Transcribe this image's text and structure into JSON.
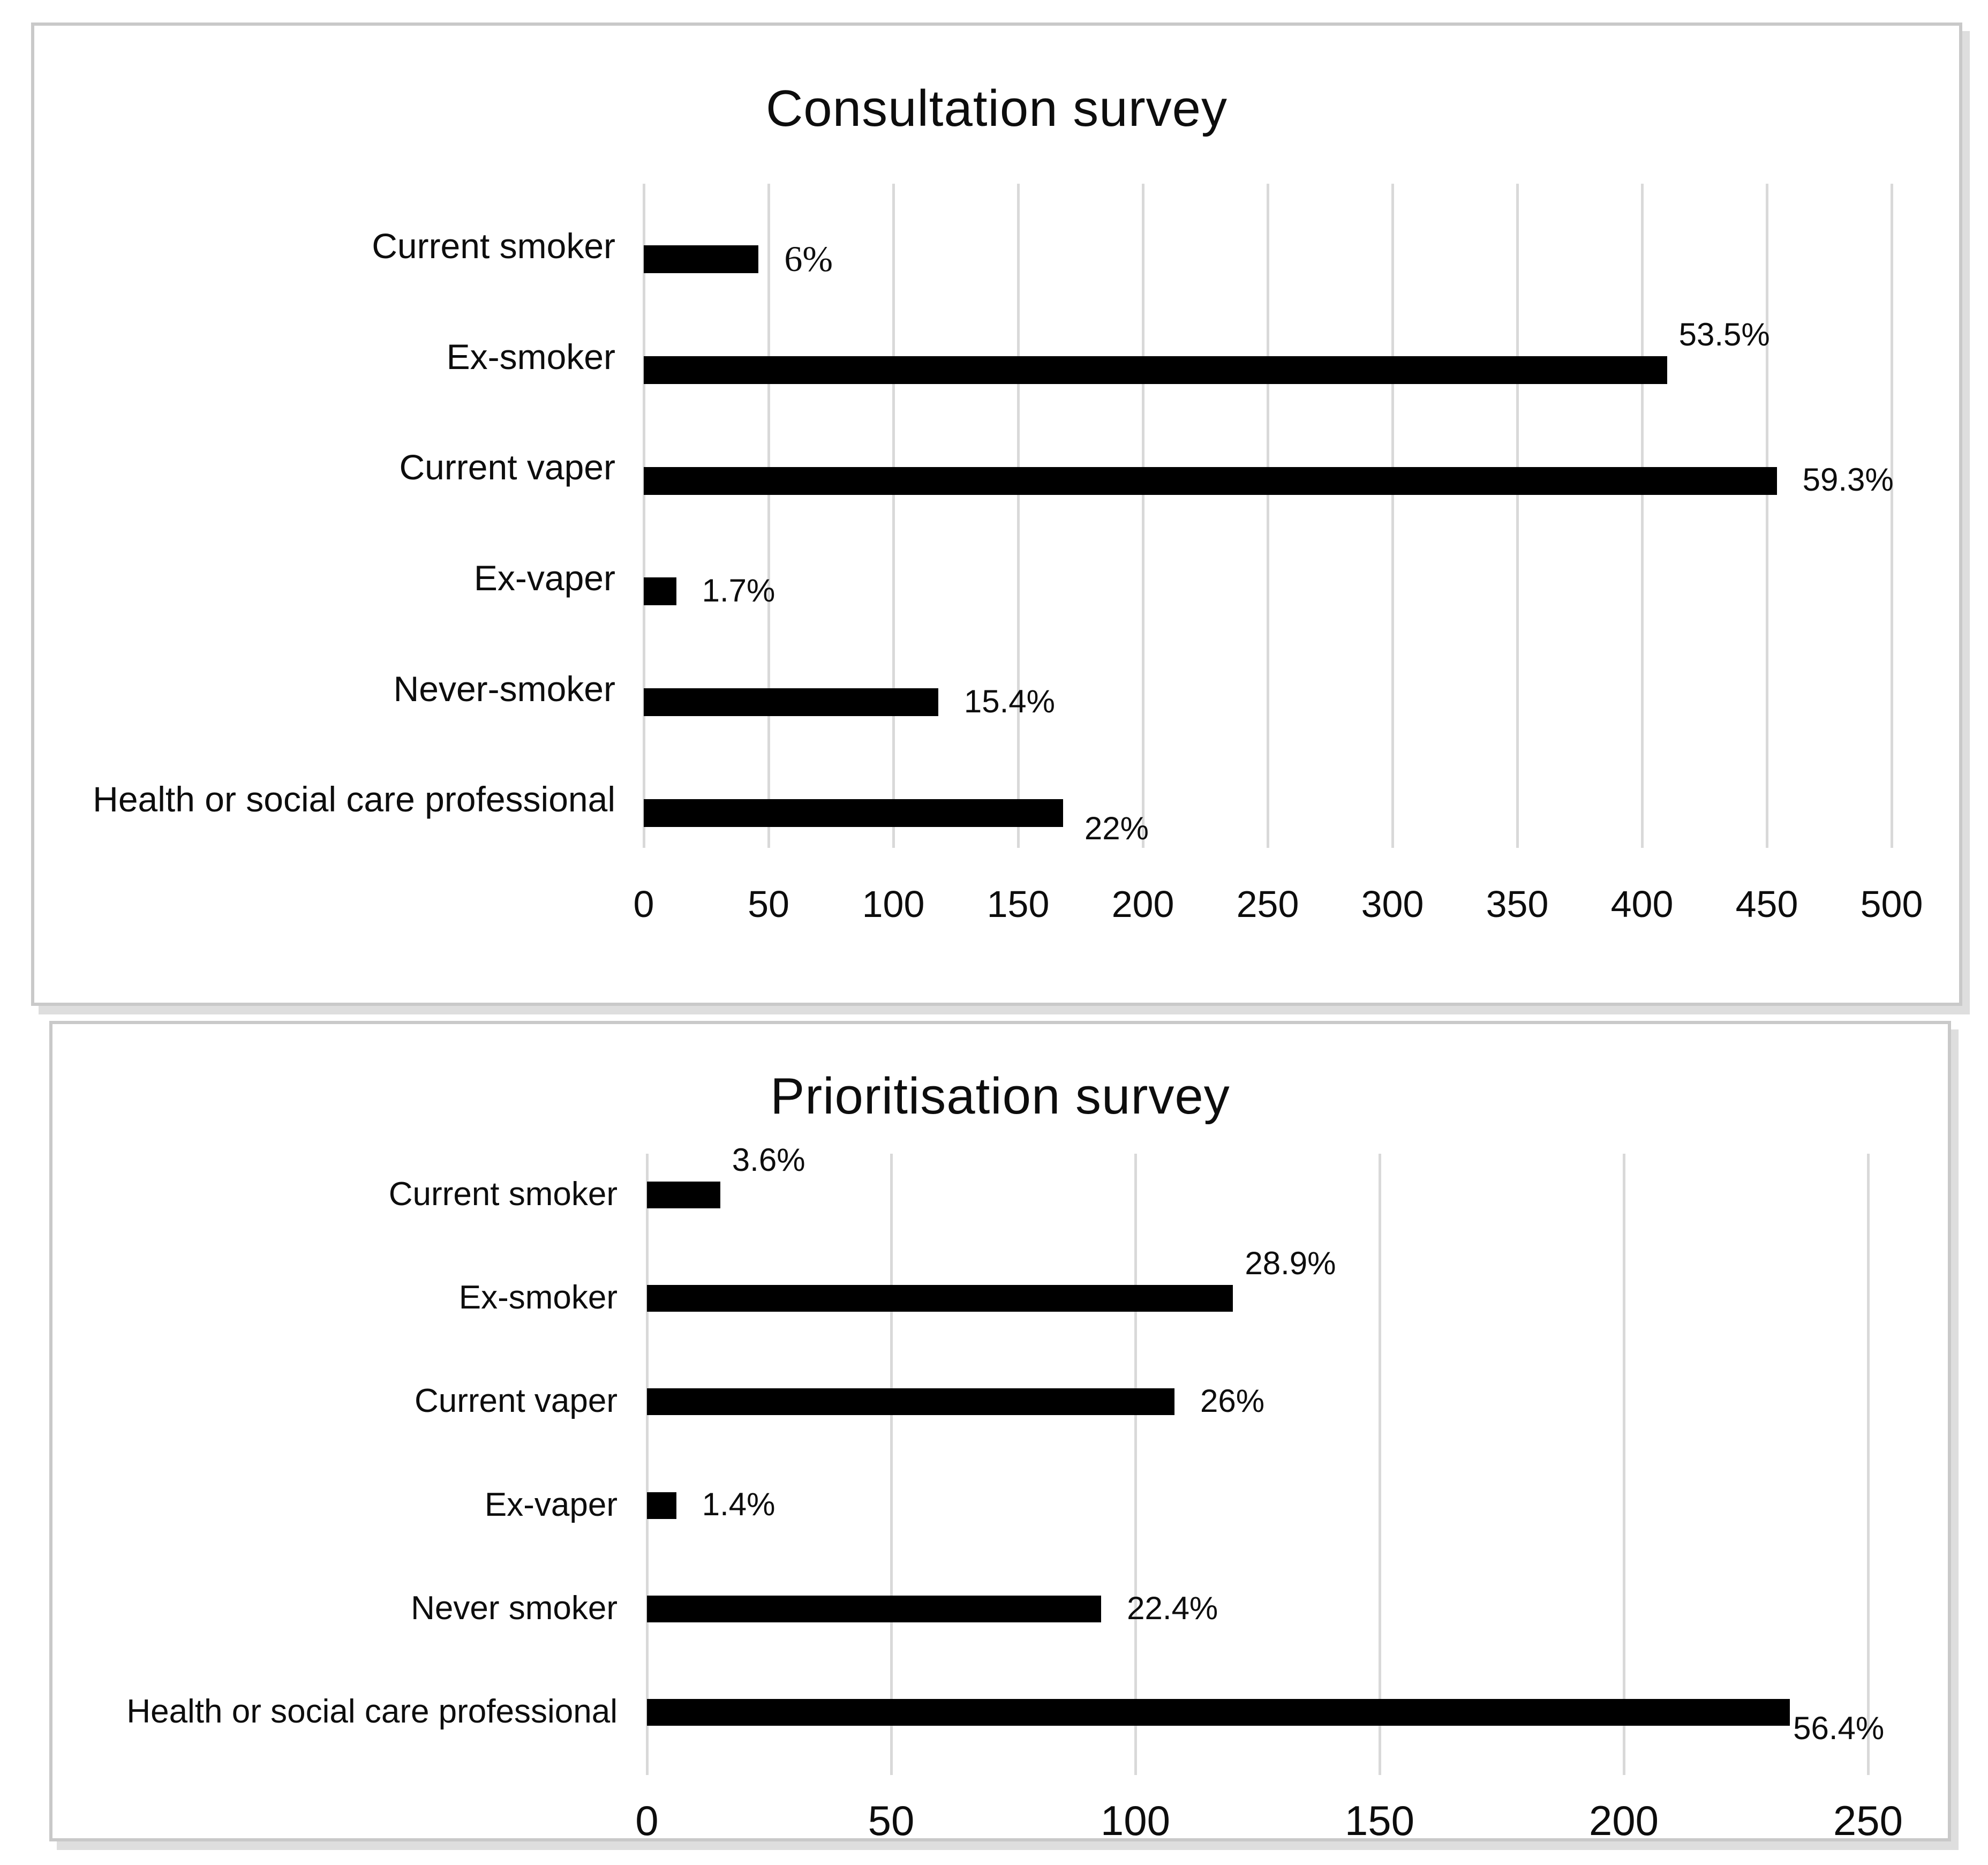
{
  "figure": {
    "kind": "stacked pair of horizontal bar charts",
    "bar_color": "#000000",
    "gridline_color": "#d9d9d9",
    "panel_border_color": "#c9c9c9"
  },
  "chart_data": [
    {
      "type": "bar",
      "orientation": "horizontal",
      "title": "Consultation survey",
      "categories": [
        "Current smoker",
        "Ex-smoker",
        "Current vaper",
        "Ex-vaper",
        "Never-smoker",
        "Health or social care professional"
      ],
      "values": [
        46,
        410,
        454,
        13,
        118,
        168
      ],
      "data_labels": [
        "6%",
        "53.5%",
        "59.3%",
        "1.7%",
        "15.4%",
        "22%"
      ],
      "label_placement": [
        "right",
        "above",
        "right",
        "right",
        "right",
        "below"
      ],
      "label_font_style": [
        "serif",
        "sans",
        "sans",
        "sans",
        "sans",
        "sans"
      ],
      "xlabel": "",
      "ylabel": "",
      "xlim": [
        0,
        500
      ],
      "xticks": [
        "0",
        "50",
        "100",
        "150",
        "200",
        "250",
        "300",
        "350",
        "400",
        "450",
        "500"
      ],
      "grid": "vertical gridlines on",
      "legend": "none"
    },
    {
      "type": "bar",
      "orientation": "horizontal",
      "title": "Prioritisation survey",
      "categories": [
        "Current smoker",
        "Ex-smoker",
        "Current vaper",
        "Ex-vaper",
        "Never smoker",
        "Health or social care professional"
      ],
      "values": [
        15,
        120,
        108,
        6,
        93,
        234
      ],
      "data_labels": [
        "3.6%",
        "28.9%",
        "26%",
        "1.4%",
        "22.4%",
        "56.4%"
      ],
      "label_placement": [
        "above",
        "above",
        "right",
        "right",
        "right",
        "below-overlap"
      ],
      "label_font_style": [
        "sans",
        "sans",
        "sans",
        "sans",
        "sans",
        "sans"
      ],
      "xlabel": "",
      "ylabel": "",
      "xlim": [
        0,
        250
      ],
      "xticks": [
        "0",
        "50",
        "100",
        "150",
        "200",
        "250"
      ],
      "grid": "vertical gridlines on",
      "legend": "none"
    }
  ]
}
